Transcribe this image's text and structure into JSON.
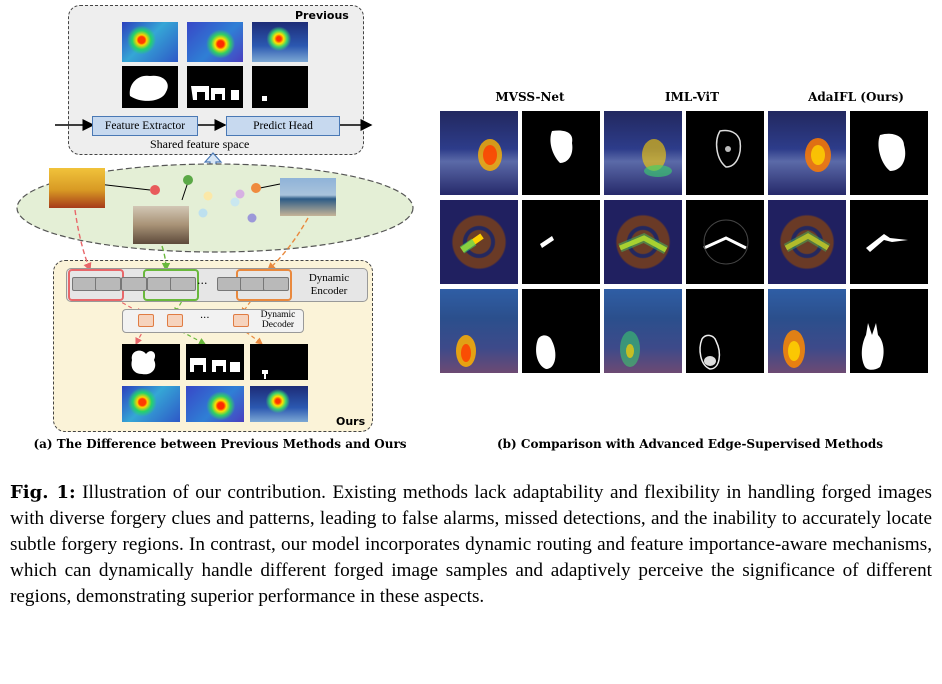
{
  "panel_a": {
    "previous_label": "Previous",
    "ours_label": "Ours",
    "feature_extractor": "Feature Extractor",
    "predict_head": "Predict Head",
    "shared_space": "Shared feature space",
    "dynamic_encoder": "Dynamic Encoder",
    "dynamic_decoder": "Dynamic Decoder",
    "ellipsis": "···",
    "caption": "(a) The Difference between Previous Methods and Ours"
  },
  "panel_b": {
    "col1": "MVSS-Net",
    "col2": "IML-ViT",
    "col3": "AdaIFL (Ours)",
    "caption": "(b) Comparison with Advanced Edge-Supervised Methods"
  },
  "figure_caption": {
    "label": "Fig. 1:",
    "text": "Illustration of our contribution. Existing methods lack adaptability and flexibility in handling forged images with diverse forgery clues and patterns, leading to false alarms, missed detections, and the inability to accurately locate subtle forgery regions. In contrast, our model incorporates dynamic routing and feature importance-aware mechanisms, which can dynamically handle different forged image samples and adaptively perceive the significance of different regions, demonstrating superior performance in these aspects."
  },
  "colors": {
    "route_red": "#e8676a",
    "route_green": "#69b83c",
    "route_orange": "#e9893e",
    "block_blue": "#c7d9ef",
    "ellipse_green": "#e4efd6",
    "ours_bg": "#fbf3d8"
  }
}
